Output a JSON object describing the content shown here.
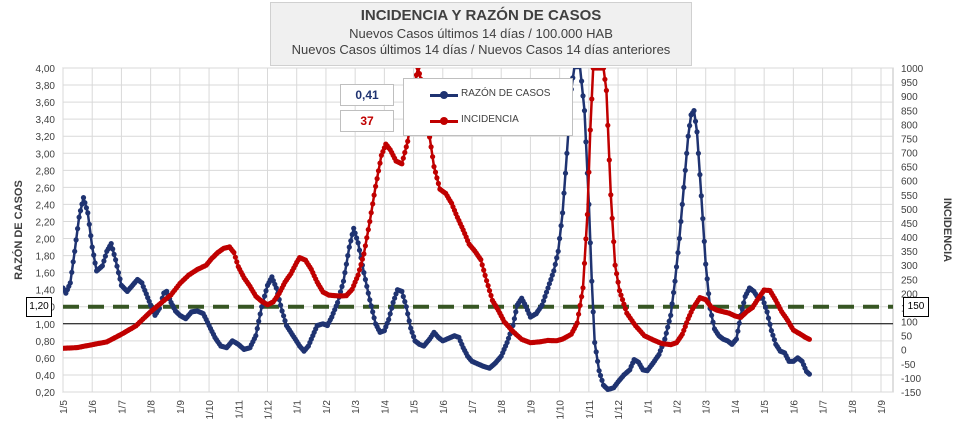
{
  "header": {
    "title": "INCIDENCIA Y RAZÓN DE CASOS",
    "line1": "Nuevos Casos últimos 14 días / 100.000  HAB",
    "line2": "Nuevos Casos últimos 14 días / Nuevos Casos 14 días anteriores"
  },
  "current": {
    "ratio": "0,41",
    "incidence": "37"
  },
  "legend": {
    "ratio": "RAZÓN DE CASOS",
    "incidence": "INCIDENCIA"
  },
  "reference": {
    "ratio_label": "1,20",
    "incidence_label": "150"
  },
  "colors": {
    "ratio": "#1f3371",
    "incidence": "#c00000",
    "threshold": "#375623",
    "grid": "#d9d9d9"
  },
  "chart_data": {
    "type": "line",
    "xlabel": "",
    "ylabel_left": "RAZÓN DE CASOS",
    "ylabel_right": "INCIDENCIA",
    "ylim_left": [
      0.2,
      4.0
    ],
    "ylim_right": [
      -150,
      1000
    ],
    "left_ticks": [
      "0,20",
      "0,40",
      "0,60",
      "0,80",
      "1,00",
      "1,20",
      "1,40",
      "1,60",
      "1,80",
      "2,00",
      "2,20",
      "2,40",
      "2,60",
      "2,80",
      "3,00",
      "3,20",
      "3,40",
      "3,60",
      "3,80",
      "4,00"
    ],
    "right_ticks": [
      "-150",
      "-100",
      "-50",
      "0",
      "50",
      "100",
      "150",
      "200",
      "250",
      "300",
      "350",
      "400",
      "450",
      "500",
      "550",
      "600",
      "650",
      "700",
      "750",
      "800",
      "850",
      "900",
      "950",
      "1000"
    ],
    "x_tick_labels": [
      "1/5",
      "1/6",
      "1/7",
      "1/8",
      "1/9",
      "1/10",
      "1/11",
      "1/12",
      "1/1",
      "1/2",
      "1/3",
      "1/4",
      "1/5",
      "1/6",
      "1/7",
      "1/8",
      "1/9",
      "1/10",
      "1/11",
      "1/12",
      "1/1",
      "1/2",
      "1/3",
      "1/4",
      "1/5",
      "1/6",
      "1/7",
      "1/8",
      "1/9"
    ],
    "threshold": {
      "ratio": 1.2,
      "incidence": 150
    },
    "grid": true,
    "legend_position": "top-center",
    "series": [
      {
        "name": "RAZÓN DE CASOS",
        "axis": "left",
        "points": [
          [
            0.0,
            1.42
          ],
          [
            0.1,
            1.36
          ],
          [
            0.25,
            1.48
          ],
          [
            0.4,
            1.85
          ],
          [
            0.55,
            2.25
          ],
          [
            0.7,
            2.48
          ],
          [
            0.85,
            2.3
          ],
          [
            1.0,
            1.9
          ],
          [
            1.15,
            1.62
          ],
          [
            1.35,
            1.68
          ],
          [
            1.5,
            1.85
          ],
          [
            1.65,
            1.94
          ],
          [
            1.8,
            1.75
          ],
          [
            2.0,
            1.45
          ],
          [
            2.2,
            1.38
          ],
          [
            2.4,
            1.46
          ],
          [
            2.55,
            1.52
          ],
          [
            2.7,
            1.48
          ],
          [
            2.85,
            1.35
          ],
          [
            3.0,
            1.22
          ],
          [
            3.15,
            1.1
          ],
          [
            3.3,
            1.18
          ],
          [
            3.45,
            1.36
          ],
          [
            3.55,
            1.38
          ],
          [
            3.7,
            1.25
          ],
          [
            3.85,
            1.15
          ],
          [
            4.0,
            1.1
          ],
          [
            4.2,
            1.06
          ],
          [
            4.4,
            1.14
          ],
          [
            4.6,
            1.15
          ],
          [
            4.8,
            1.12
          ],
          [
            5.0,
            0.98
          ],
          [
            5.2,
            0.84
          ],
          [
            5.4,
            0.74
          ],
          [
            5.6,
            0.72
          ],
          [
            5.8,
            0.8
          ],
          [
            6.0,
            0.76
          ],
          [
            6.2,
            0.7
          ],
          [
            6.4,
            0.72
          ],
          [
            6.6,
            0.86
          ],
          [
            6.8,
            1.2
          ],
          [
            7.0,
            1.45
          ],
          [
            7.15,
            1.55
          ],
          [
            7.3,
            1.42
          ],
          [
            7.5,
            1.15
          ],
          [
            7.65,
            0.98
          ],
          [
            7.8,
            0.9
          ],
          [
            7.95,
            0.82
          ],
          [
            8.1,
            0.74
          ],
          [
            8.25,
            0.68
          ],
          [
            8.4,
            0.74
          ],
          [
            8.55,
            0.86
          ],
          [
            8.7,
            0.98
          ],
          [
            8.9,
            1.0
          ],
          [
            9.05,
            0.98
          ],
          [
            9.2,
            1.08
          ],
          [
            9.4,
            1.25
          ],
          [
            9.6,
            1.5
          ],
          [
            9.8,
            1.9
          ],
          [
            9.95,
            2.12
          ],
          [
            10.1,
            1.95
          ],
          [
            10.3,
            1.6
          ],
          [
            10.5,
            1.28
          ],
          [
            10.7,
            1.0
          ],
          [
            10.85,
            0.9
          ],
          [
            11.0,
            0.92
          ],
          [
            11.15,
            1.05
          ],
          [
            11.3,
            1.25
          ],
          [
            11.45,
            1.4
          ],
          [
            11.6,
            1.38
          ],
          [
            11.75,
            1.2
          ],
          [
            11.9,
            0.95
          ],
          [
            12.05,
            0.8
          ],
          [
            12.2,
            0.76
          ],
          [
            12.35,
            0.74
          ],
          [
            12.55,
            0.82
          ],
          [
            12.7,
            0.9
          ],
          [
            12.85,
            0.84
          ],
          [
            13.0,
            0.8
          ],
          [
            13.2,
            0.83
          ],
          [
            13.4,
            0.86
          ],
          [
            13.55,
            0.84
          ],
          [
            13.7,
            0.72
          ],
          [
            13.85,
            0.62
          ],
          [
            14.0,
            0.56
          ],
          [
            14.2,
            0.53
          ],
          [
            14.4,
            0.5
          ],
          [
            14.6,
            0.48
          ],
          [
            14.8,
            0.54
          ],
          [
            15.0,
            0.62
          ],
          [
            15.2,
            0.78
          ],
          [
            15.4,
            0.98
          ],
          [
            15.55,
            1.22
          ],
          [
            15.7,
            1.3
          ],
          [
            15.85,
            1.2
          ],
          [
            16.0,
            1.08
          ],
          [
            16.2,
            1.12
          ],
          [
            16.4,
            1.22
          ],
          [
            16.6,
            1.42
          ],
          [
            16.8,
            1.62
          ],
          [
            16.95,
            1.85
          ],
          [
            17.1,
            2.3
          ],
          [
            17.25,
            3.0
          ],
          [
            17.4,
            3.75
          ],
          [
            17.5,
            4.02
          ],
          [
            17.6,
            4.02
          ],
          [
            17.7,
            4.02
          ],
          [
            17.85,
            3.5
          ],
          [
            18.0,
            2.4
          ],
          [
            18.1,
            1.5
          ],
          [
            18.2,
            0.78
          ],
          [
            18.35,
            0.45
          ],
          [
            18.5,
            0.28
          ],
          [
            18.65,
            0.23
          ],
          [
            18.85,
            0.25
          ],
          [
            19.0,
            0.32
          ],
          [
            19.2,
            0.4
          ],
          [
            19.4,
            0.46
          ],
          [
            19.55,
            0.58
          ],
          [
            19.7,
            0.55
          ],
          [
            19.85,
            0.46
          ],
          [
            20.0,
            0.45
          ],
          [
            20.2,
            0.54
          ],
          [
            20.4,
            0.64
          ],
          [
            20.6,
            0.82
          ],
          [
            20.8,
            1.1
          ],
          [
            20.95,
            1.5
          ],
          [
            21.1,
            2.0
          ],
          [
            21.25,
            2.6
          ],
          [
            21.4,
            3.2
          ],
          [
            21.5,
            3.45
          ],
          [
            21.6,
            3.5
          ],
          [
            21.7,
            3.25
          ],
          [
            21.85,
            2.5
          ],
          [
            22.0,
            1.7
          ],
          [
            22.15,
            1.18
          ],
          [
            22.3,
            0.94
          ],
          [
            22.45,
            0.86
          ],
          [
            22.6,
            0.82
          ],
          [
            22.75,
            0.8
          ],
          [
            22.9,
            0.76
          ],
          [
            23.05,
            0.82
          ],
          [
            23.2,
            1.1
          ],
          [
            23.35,
            1.32
          ],
          [
            23.5,
            1.42
          ],
          [
            23.65,
            1.38
          ],
          [
            23.8,
            1.3
          ],
          [
            23.95,
            1.3
          ],
          [
            24.1,
            1.14
          ],
          [
            24.25,
            0.92
          ],
          [
            24.4,
            0.76
          ],
          [
            24.55,
            0.68
          ],
          [
            24.7,
            0.66
          ],
          [
            24.85,
            0.56
          ],
          [
            25.0,
            0.56
          ],
          [
            25.15,
            0.6
          ],
          [
            25.3,
            0.56
          ],
          [
            25.45,
            0.44
          ],
          [
            25.55,
            0.41
          ]
        ]
      },
      {
        "name": "INCIDENCIA",
        "axis": "right",
        "points": [
          [
            0.0,
            5
          ],
          [
            0.5,
            8
          ],
          [
            1.0,
            18
          ],
          [
            1.5,
            28
          ],
          [
            2.0,
            55
          ],
          [
            2.5,
            85
          ],
          [
            2.8,
            115
          ],
          [
            3.0,
            135
          ],
          [
            3.4,
            170
          ],
          [
            3.7,
            195
          ],
          [
            4.0,
            235
          ],
          [
            4.3,
            265
          ],
          [
            4.6,
            285
          ],
          [
            4.9,
            300
          ],
          [
            5.1,
            325
          ],
          [
            5.3,
            345
          ],
          [
            5.5,
            360
          ],
          [
            5.7,
            365
          ],
          [
            5.85,
            345
          ],
          [
            6.0,
            295
          ],
          [
            6.2,
            255
          ],
          [
            6.4,
            225
          ],
          [
            6.6,
            190
          ],
          [
            6.8,
            172
          ],
          [
            7.0,
            160
          ],
          [
            7.2,
            170
          ],
          [
            7.4,
            200
          ],
          [
            7.6,
            240
          ],
          [
            7.8,
            270
          ],
          [
            8.0,
            310
          ],
          [
            8.1,
            327
          ],
          [
            8.3,
            318
          ],
          [
            8.5,
            285
          ],
          [
            8.7,
            240
          ],
          [
            8.9,
            205
          ],
          [
            9.1,
            194
          ],
          [
            9.3,
            192
          ],
          [
            9.5,
            191
          ],
          [
            9.7,
            192
          ],
          [
            9.9,
            215
          ],
          [
            10.1,
            265
          ],
          [
            10.3,
            340
          ],
          [
            10.5,
            455
          ],
          [
            10.7,
            580
          ],
          [
            10.9,
            690
          ],
          [
            11.05,
            730
          ],
          [
            11.2,
            710
          ],
          [
            11.4,
            670
          ],
          [
            11.6,
            660
          ],
          [
            11.8,
            740
          ],
          [
            11.95,
            840
          ],
          [
            12.05,
            950
          ],
          [
            12.15,
            1000
          ],
          [
            12.3,
            940
          ],
          [
            12.5,
            790
          ],
          [
            12.7,
            650
          ],
          [
            12.9,
            570
          ],
          [
            13.1,
            555
          ],
          [
            13.3,
            520
          ],
          [
            13.5,
            470
          ],
          [
            13.7,
            425
          ],
          [
            13.9,
            375
          ],
          [
            14.1,
            350
          ],
          [
            14.3,
            320
          ],
          [
            14.5,
            245
          ],
          [
            14.7,
            175
          ],
          [
            14.9,
            140
          ],
          [
            15.1,
            100
          ],
          [
            15.4,
            65
          ],
          [
            15.7,
            37
          ],
          [
            16.0,
            25
          ],
          [
            16.3,
            28
          ],
          [
            16.6,
            33
          ],
          [
            16.9,
            32
          ],
          [
            17.1,
            38
          ],
          [
            17.4,
            55
          ],
          [
            17.6,
            95
          ],
          [
            17.8,
            220
          ],
          [
            17.95,
            480
          ],
          [
            18.05,
            780
          ],
          [
            18.15,
            1000
          ],
          [
            18.35,
            1000
          ],
          [
            18.5,
            1000
          ],
          [
            18.6,
            920
          ],
          [
            18.75,
            550
          ],
          [
            18.9,
            300
          ],
          [
            19.05,
            210
          ],
          [
            19.3,
            130
          ],
          [
            19.6,
            85
          ],
          [
            19.9,
            50
          ],
          [
            20.2,
            35
          ],
          [
            20.5,
            22
          ],
          [
            20.8,
            18
          ],
          [
            21.0,
            25
          ],
          [
            21.2,
            55
          ],
          [
            21.4,
            110
          ],
          [
            21.55,
            145
          ],
          [
            21.8,
            185
          ],
          [
            22.0,
            178
          ],
          [
            22.2,
            150
          ],
          [
            22.4,
            140
          ],
          [
            22.6,
            135
          ],
          [
            22.8,
            130
          ],
          [
            23.0,
            120
          ],
          [
            23.2,
            115
          ],
          [
            23.4,
            135
          ],
          [
            23.6,
            150
          ],
          [
            23.8,
            182
          ],
          [
            24.0,
            212
          ],
          [
            24.2,
            210
          ],
          [
            24.4,
            175
          ],
          [
            24.6,
            135
          ],
          [
            24.8,
            105
          ],
          [
            25.0,
            70
          ],
          [
            25.2,
            58
          ],
          [
            25.4,
            45
          ],
          [
            25.55,
            37
          ]
        ]
      }
    ]
  }
}
